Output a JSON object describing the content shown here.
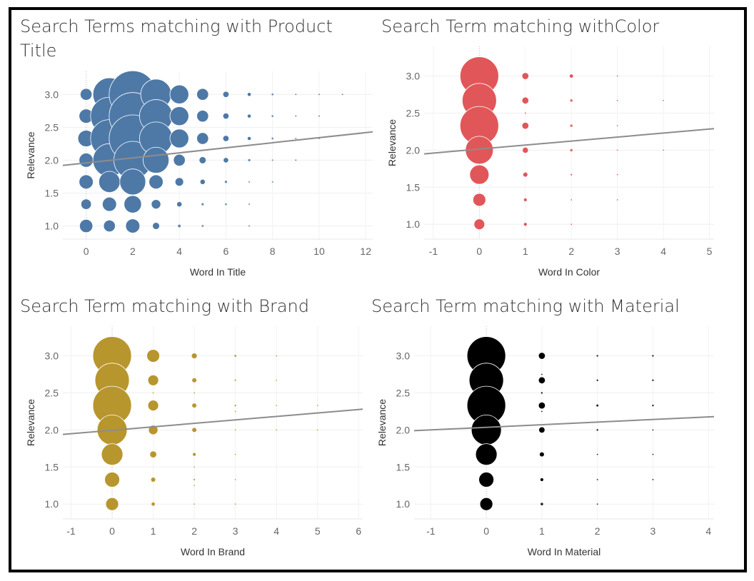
{
  "chart_data": [
    {
      "type": "scatter",
      "title": "Search Terms matching with Product Title",
      "xlabel": "Word In Title",
      "ylabel": "Relevance",
      "xlim": [
        -1,
        12.3
      ],
      "ylim": [
        0.8,
        3.35
      ],
      "xticks": [
        0,
        2,
        4,
        6,
        8,
        10,
        12
      ],
      "yticks": [
        1.0,
        1.5,
        2.0,
        2.5,
        3.0
      ],
      "color": "#4e79a7",
      "trend_line": [
        [
          -1,
          1.92
        ],
        [
          12.3,
          2.43
        ]
      ],
      "points": [
        {
          "x": 0,
          "y": 3.0,
          "s": 2.5
        },
        {
          "x": 0,
          "y": 2.67,
          "s": 3
        },
        {
          "x": 0,
          "y": 2.33,
          "s": 3.5
        },
        {
          "x": 0,
          "y": 2.0,
          "s": 3
        },
        {
          "x": 0,
          "y": 1.67,
          "s": 3
        },
        {
          "x": 0,
          "y": 1.33,
          "s": 2.2
        },
        {
          "x": 0,
          "y": 1.0,
          "s": 2.8
        },
        {
          "x": 1,
          "y": 3.0,
          "s": 7
        },
        {
          "x": 1,
          "y": 2.67,
          "s": 8
        },
        {
          "x": 1,
          "y": 2.33,
          "s": 8
        },
        {
          "x": 1,
          "y": 2.0,
          "s": 7
        },
        {
          "x": 1,
          "y": 1.67,
          "s": 4.5
        },
        {
          "x": 1,
          "y": 1.33,
          "s": 3
        },
        {
          "x": 1,
          "y": 1.0,
          "s": 2.5
        },
        {
          "x": 2,
          "y": 3.0,
          "s": 10
        },
        {
          "x": 2,
          "y": 2.67,
          "s": 10
        },
        {
          "x": 2,
          "y": 2.33,
          "s": 10
        },
        {
          "x": 2,
          "y": 2.0,
          "s": 8
        },
        {
          "x": 2,
          "y": 1.67,
          "s": 5.5
        },
        {
          "x": 2,
          "y": 1.33,
          "s": 3.7
        },
        {
          "x": 2,
          "y": 1.0,
          "s": 3
        },
        {
          "x": 3,
          "y": 3.0,
          "s": 6.5
        },
        {
          "x": 3,
          "y": 2.67,
          "s": 7
        },
        {
          "x": 3,
          "y": 2.33,
          "s": 7
        },
        {
          "x": 3,
          "y": 2.0,
          "s": 5.5
        },
        {
          "x": 3,
          "y": 1.67,
          "s": 3
        },
        {
          "x": 3,
          "y": 1.33,
          "s": 2
        },
        {
          "x": 3,
          "y": 1.0,
          "s": 1.5
        },
        {
          "x": 4,
          "y": 3.0,
          "s": 4
        },
        {
          "x": 4,
          "y": 2.67,
          "s": 4
        },
        {
          "x": 4,
          "y": 2.33,
          "s": 4
        },
        {
          "x": 4,
          "y": 2.0,
          "s": 2.5
        },
        {
          "x": 4,
          "y": 1.67,
          "s": 1.8
        },
        {
          "x": 4,
          "y": 1.33,
          "s": 1
        },
        {
          "x": 4,
          "y": 1.0,
          "s": 0.6
        },
        {
          "x": 5,
          "y": 3.0,
          "s": 2.5
        },
        {
          "x": 5,
          "y": 2.67,
          "s": 2.5
        },
        {
          "x": 5,
          "y": 2.33,
          "s": 2.5
        },
        {
          "x": 5,
          "y": 2.0,
          "s": 1.5
        },
        {
          "x": 5,
          "y": 1.67,
          "s": 1
        },
        {
          "x": 5,
          "y": 1.33,
          "s": 0.5
        },
        {
          "x": 5,
          "y": 1.0,
          "s": 0.4
        },
        {
          "x": 6,
          "y": 3.0,
          "s": 1.3
        },
        {
          "x": 6,
          "y": 2.67,
          "s": 1.3
        },
        {
          "x": 6,
          "y": 2.33,
          "s": 1.3
        },
        {
          "x": 6,
          "y": 2.0,
          "s": 1
        },
        {
          "x": 6,
          "y": 1.67,
          "s": 0.5
        },
        {
          "x": 6,
          "y": 1.33,
          "s": 0.4
        },
        {
          "x": 7,
          "y": 3.0,
          "s": 0.7
        },
        {
          "x": 7,
          "y": 2.67,
          "s": 0.7
        },
        {
          "x": 7,
          "y": 2.33,
          "s": 0.7
        },
        {
          "x": 7,
          "y": 2.0,
          "s": 0.5
        },
        {
          "x": 7,
          "y": 1.67,
          "s": 0.3
        },
        {
          "x": 7,
          "y": 1.33,
          "s": 0.3
        },
        {
          "x": 7,
          "y": 1.0,
          "s": 0.3
        },
        {
          "x": 8,
          "y": 3.0,
          "s": 0.4
        },
        {
          "x": 8,
          "y": 2.67,
          "s": 0.4
        },
        {
          "x": 8,
          "y": 2.33,
          "s": 0.4
        },
        {
          "x": 8,
          "y": 2.0,
          "s": 0.3
        },
        {
          "x": 8,
          "y": 1.67,
          "s": 0.3
        },
        {
          "x": 9,
          "y": 3.0,
          "s": 0.3
        },
        {
          "x": 9,
          "y": 2.67,
          "s": 0.3
        },
        {
          "x": 9,
          "y": 2.33,
          "s": 0.3
        },
        {
          "x": 9,
          "y": 2.0,
          "s": 0.3
        },
        {
          "x": 10,
          "y": 3.0,
          "s": 0.3
        },
        {
          "x": 10,
          "y": 2.67,
          "s": 0.3
        },
        {
          "x": 10,
          "y": 2.33,
          "s": 0.3
        },
        {
          "x": 11,
          "y": 3.0,
          "s": 0.3
        }
      ]
    },
    {
      "type": "scatter",
      "title": "Search Term matching withColor",
      "xlabel": "Word In Color",
      "ylabel": "Relevance",
      "xlim": [
        -1.2,
        5.1
      ],
      "ylim": [
        0.8,
        3.4
      ],
      "xticks": [
        -1,
        0,
        1,
        2,
        3,
        4,
        5
      ],
      "yticks": [
        1.0,
        1.5,
        2.0,
        2.5,
        3.0
      ],
      "color": "#e15759",
      "trend_line": [
        [
          -1.2,
          1.95
        ],
        [
          5.1,
          2.29
        ]
      ],
      "points": [
        {
          "x": 0,
          "y": 3.0,
          "s": 9
        },
        {
          "x": 0,
          "y": 2.67,
          "s": 8
        },
        {
          "x": 0,
          "y": 2.33,
          "s": 9
        },
        {
          "x": 0,
          "y": 2.0,
          "s": 6.5
        },
        {
          "x": 0,
          "y": 1.67,
          "s": 4.5
        },
        {
          "x": 0,
          "y": 1.33,
          "s": 3
        },
        {
          "x": 0,
          "y": 1.0,
          "s": 2.5
        },
        {
          "x": 1,
          "y": 3.0,
          "s": 1.6
        },
        {
          "x": 1,
          "y": 2.67,
          "s": 1.6
        },
        {
          "x": 1,
          "y": 2.5,
          "s": 0.3
        },
        {
          "x": 1,
          "y": 2.33,
          "s": 1.6
        },
        {
          "x": 1,
          "y": 2.0,
          "s": 1.4
        },
        {
          "x": 1,
          "y": 1.67,
          "s": 1
        },
        {
          "x": 1,
          "y": 1.33,
          "s": 0.7
        },
        {
          "x": 1,
          "y": 1.0,
          "s": 0.7
        },
        {
          "x": 2,
          "y": 3.0,
          "s": 0.8
        },
        {
          "x": 2,
          "y": 2.67,
          "s": 0.6
        },
        {
          "x": 2,
          "y": 2.33,
          "s": 0.6
        },
        {
          "x": 2,
          "y": 2.0,
          "s": 0.6
        },
        {
          "x": 2,
          "y": 1.67,
          "s": 0.4
        },
        {
          "x": 2,
          "y": 1.33,
          "s": 0.3
        },
        {
          "x": 2,
          "y": 1.0,
          "s": 0.3
        },
        {
          "x": 3,
          "y": 3.0,
          "s": 0.3
        },
        {
          "x": 3,
          "y": 2.67,
          "s": 0.3
        },
        {
          "x": 3,
          "y": 2.33,
          "s": 0.3
        },
        {
          "x": 3,
          "y": 2.0,
          "s": 0.3
        },
        {
          "x": 3,
          "y": 1.67,
          "s": 0.3
        },
        {
          "x": 3,
          "y": 1.33,
          "s": 0.3
        },
        {
          "x": 4,
          "y": 2.67,
          "s": 0.3
        },
        {
          "x": 4,
          "y": 2.0,
          "s": 0.3
        }
      ]
    },
    {
      "type": "scatter",
      "title": "Search Term matching with Brand",
      "xlabel": "Word In Brand",
      "ylabel": "Relevance",
      "xlim": [
        -1.2,
        6.1
      ],
      "ylim": [
        0.8,
        3.4
      ],
      "xticks": [
        -1,
        0,
        1,
        2,
        3,
        4,
        5,
        6
      ],
      "yticks": [
        1.0,
        1.5,
        2.0,
        2.5,
        3.0
      ],
      "color": "#b8962e",
      "trend_line": [
        [
          -1.2,
          1.94
        ],
        [
          6.1,
          2.28
        ]
      ],
      "points": [
        {
          "x": 0,
          "y": 3.0,
          "s": 9
        },
        {
          "x": 0,
          "y": 2.67,
          "s": 8
        },
        {
          "x": 0,
          "y": 2.33,
          "s": 9
        },
        {
          "x": 0,
          "y": 2.0,
          "s": 7
        },
        {
          "x": 0,
          "y": 1.67,
          "s": 5
        },
        {
          "x": 0,
          "y": 1.33,
          "s": 3.5
        },
        {
          "x": 0,
          "y": 1.0,
          "s": 3
        },
        {
          "x": 1,
          "y": 3.0,
          "s": 3
        },
        {
          "x": 1,
          "y": 2.67,
          "s": 2.5
        },
        {
          "x": 1,
          "y": 2.5,
          "s": 0.3
        },
        {
          "x": 1,
          "y": 2.33,
          "s": 2.5
        },
        {
          "x": 1,
          "y": 2.0,
          "s": 2.2
        },
        {
          "x": 1,
          "y": 1.67,
          "s": 1.6
        },
        {
          "x": 1,
          "y": 1.33,
          "s": 1
        },
        {
          "x": 1,
          "y": 1.0,
          "s": 0.8
        },
        {
          "x": 2,
          "y": 3.0,
          "s": 1.2
        },
        {
          "x": 2,
          "y": 2.67,
          "s": 1
        },
        {
          "x": 2,
          "y": 2.5,
          "s": 0.3
        },
        {
          "x": 2,
          "y": 2.33,
          "s": 1
        },
        {
          "x": 2,
          "y": 2.0,
          "s": 1
        },
        {
          "x": 2,
          "y": 1.67,
          "s": 0.7
        },
        {
          "x": 2,
          "y": 1.5,
          "s": 0.3
        },
        {
          "x": 2,
          "y": 1.33,
          "s": 0.4
        },
        {
          "x": 2,
          "y": 1.25,
          "s": 0.3
        },
        {
          "x": 2,
          "y": 1.0,
          "s": 0.3
        },
        {
          "x": 3,
          "y": 3.0,
          "s": 0.5
        },
        {
          "x": 3,
          "y": 2.67,
          "s": 0.4
        },
        {
          "x": 3,
          "y": 2.33,
          "s": 0.4
        },
        {
          "x": 3,
          "y": 2.25,
          "s": 0.3
        },
        {
          "x": 3,
          "y": 2.0,
          "s": 0.3
        },
        {
          "x": 3,
          "y": 1.67,
          "s": 0.3
        },
        {
          "x": 3,
          "y": 1.33,
          "s": 0.3
        },
        {
          "x": 3,
          "y": 1.0,
          "s": 0.3
        },
        {
          "x": 4,
          "y": 3.0,
          "s": 0.3
        },
        {
          "x": 4,
          "y": 2.67,
          "s": 0.3
        },
        {
          "x": 4,
          "y": 2.33,
          "s": 0.3
        },
        {
          "x": 4,
          "y": 2.0,
          "s": 0.3
        },
        {
          "x": 5,
          "y": 2.33,
          "s": 0.3
        },
        {
          "x": 5,
          "y": 2.0,
          "s": 0.3
        }
      ]
    },
    {
      "type": "scatter",
      "title": "Search Term matching with Material",
      "xlabel": "Word In Material",
      "ylabel": "Relevance",
      "xlim": [
        -1.3,
        4.1
      ],
      "ylim": [
        0.8,
        3.4
      ],
      "xticks": [
        -1,
        0,
        1,
        2,
        3,
        4
      ],
      "yticks": [
        1.0,
        1.5,
        2.0,
        2.5,
        3.0
      ],
      "color": "#000000",
      "trend_line": [
        [
          -1.3,
          1.99
        ],
        [
          4.1,
          2.18
        ]
      ],
      "points": [
        {
          "x": 0,
          "y": 3.0,
          "s": 9
        },
        {
          "x": 0,
          "y": 2.67,
          "s": 8
        },
        {
          "x": 0,
          "y": 2.33,
          "s": 9
        },
        {
          "x": 0,
          "y": 2.0,
          "s": 7
        },
        {
          "x": 0,
          "y": 1.67,
          "s": 5
        },
        {
          "x": 0,
          "y": 1.33,
          "s": 3.5
        },
        {
          "x": 0,
          "y": 1.0,
          "s": 3
        },
        {
          "x": 1,
          "y": 3.0,
          "s": 1.6
        },
        {
          "x": 1,
          "y": 2.75,
          "s": 0.3
        },
        {
          "x": 1,
          "y": 2.67,
          "s": 1.6
        },
        {
          "x": 1,
          "y": 2.5,
          "s": 0.4
        },
        {
          "x": 1,
          "y": 2.33,
          "s": 1.6
        },
        {
          "x": 1,
          "y": 2.25,
          "s": 0.3
        },
        {
          "x": 1,
          "y": 2.0,
          "s": 1.3
        },
        {
          "x": 1,
          "y": 1.67,
          "s": 1
        },
        {
          "x": 1,
          "y": 1.33,
          "s": 0.7
        },
        {
          "x": 1,
          "y": 1.0,
          "s": 0.6
        },
        {
          "x": 2,
          "y": 3.0,
          "s": 0.4
        },
        {
          "x": 2,
          "y": 2.67,
          "s": 0.4
        },
        {
          "x": 2,
          "y": 2.33,
          "s": 0.5
        },
        {
          "x": 2,
          "y": 2.0,
          "s": 0.4
        },
        {
          "x": 2,
          "y": 1.67,
          "s": 0.3
        },
        {
          "x": 2,
          "y": 1.33,
          "s": 0.3
        },
        {
          "x": 2,
          "y": 1.0,
          "s": 0.3
        },
        {
          "x": 3,
          "y": 3.0,
          "s": 0.4
        },
        {
          "x": 3,
          "y": 2.67,
          "s": 0.4
        },
        {
          "x": 3,
          "y": 2.33,
          "s": 0.4
        },
        {
          "x": 3,
          "y": 2.0,
          "s": 0.3
        },
        {
          "x": 3,
          "y": 1.67,
          "s": 0.3
        },
        {
          "x": 3,
          "y": 1.33,
          "s": 0.3
        }
      ]
    }
  ]
}
